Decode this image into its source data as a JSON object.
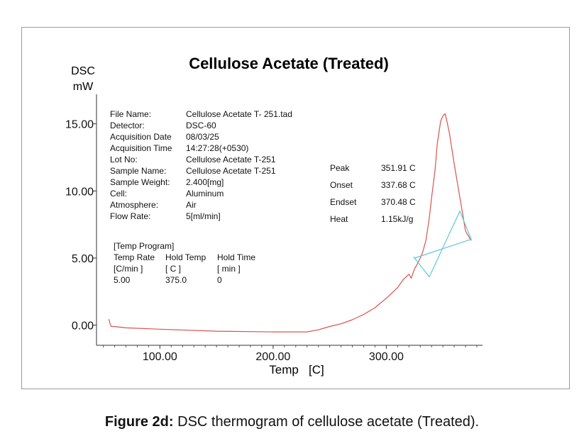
{
  "chart_data": {
    "type": "line",
    "title": "Cellulose Acetate (Treated)",
    "ylabel_line1": "DSC",
    "ylabel_line2": "mW",
    "xlabel": "Temp   [C]",
    "xlim": [
      44,
      385
    ],
    "ylim": [
      -1.5,
      17.2
    ],
    "xticks": [
      100,
      200,
      300
    ],
    "xtick_labels": [
      "100.00",
      "200.00",
      "300.00"
    ],
    "yticks": [
      0,
      5,
      10,
      15
    ],
    "ytick_labels": [
      "0.00",
      "5.00",
      "10.00",
      "15.00"
    ],
    "series": [
      {
        "color": "#d9534f",
        "x": [
          55,
          56,
          57,
          58,
          60,
          70,
          100,
          150,
          200,
          230,
          240,
          250,
          260,
          270,
          280,
          290,
          300,
          310,
          315,
          320,
          322,
          325,
          327,
          330,
          332,
          335,
          338,
          340,
          343,
          345,
          348,
          350,
          351.91,
          353,
          356,
          360,
          365,
          370,
          375
        ],
        "y": [
          0.45,
          0.1,
          -0.1,
          -0.1,
          -0.1,
          -0.2,
          -0.3,
          -0.45,
          -0.5,
          -0.5,
          -0.35,
          -0.1,
          0.1,
          0.4,
          0.8,
          1.3,
          2.0,
          2.8,
          3.4,
          3.8,
          3.5,
          4.2,
          4.5,
          5.0,
          5.4,
          6.3,
          8.0,
          9.5,
          11.5,
          13.5,
          15.2,
          15.6,
          15.75,
          15.4,
          14.2,
          12.0,
          9.5,
          7.0,
          6.3
        ]
      },
      {
        "color": "#5bc8d8",
        "x": [
          325,
          375,
          365,
          338,
          324
        ],
        "y": [
          5.0,
          6.4,
          8.5,
          3.6,
          5.1
        ]
      }
    ],
    "annotations": {
      "info": [
        {
          "key": "File Name:",
          "value": "Cellulose Acetate T- 251.tad"
        },
        {
          "key": "Detector:",
          "value": "DSC-60"
        },
        {
          "key": "Acquisition Date",
          "value": "08/03/25"
        },
        {
          "key": "Acquisition Time",
          "value": "14:27:28(+0530)"
        },
        {
          "key": "Lot No:",
          "value": "Cellulose Acetate T-251"
        },
        {
          "key": "Sample Name:",
          "value": "Cellulose Acetate T-251"
        },
        {
          "key": "Sample Weight:",
          "value": "2.400[mg]"
        },
        {
          "key": "Cell:",
          "value": "Aluminum"
        },
        {
          "key": "Atmosphere:",
          "value": "Air"
        },
        {
          "key": "Flow Rate:",
          "value": "5[ml/min]"
        }
      ],
      "results": [
        {
          "key": "Peak",
          "value": "351.91 C"
        },
        {
          "key": "Onset",
          "value": "337.68 C"
        },
        {
          "key": "Endset",
          "value": "370.48 C"
        },
        {
          "key": "Heat",
          "value": "1.15kJ/g"
        }
      ],
      "temp_program": {
        "title": "[Temp Program]",
        "headers": [
          "Temp Rate",
          "Hold Temp",
          "Hold Time"
        ],
        "units": [
          "[C/min ]",
          "[  C  ]",
          "[  min  ]"
        ],
        "row": [
          "5.00",
          "375.0",
          "0"
        ]
      }
    }
  },
  "caption": {
    "label": "Figure 2d:",
    "text": " DSC thermogram of cellulose acetate (Treated)."
  }
}
